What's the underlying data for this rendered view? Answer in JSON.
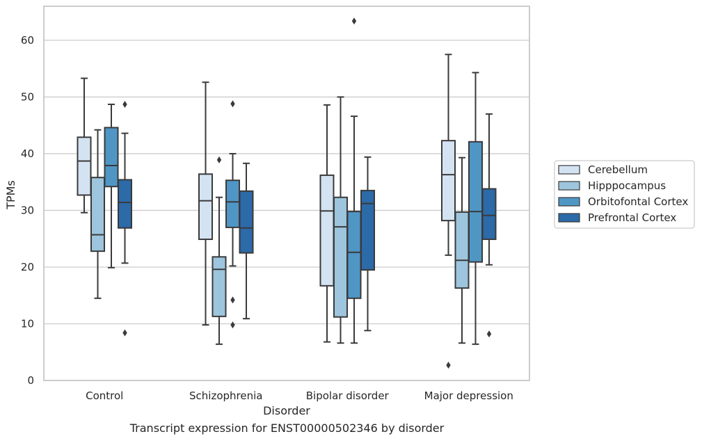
{
  "caption": "Transcript expression for ENST00000502346 by disorder",
  "chart_data": {
    "type": "boxplot",
    "xlabel": "Disorder",
    "ylabel": "TPMs",
    "ylim": [
      0,
      66
    ],
    "yticks": [
      0,
      10,
      20,
      30,
      40,
      50,
      60
    ],
    "grid": "horizontal",
    "legend_position": "right",
    "categories": [
      "Control",
      "Schizophrenia",
      "Bipolar disorder",
      "Major depression"
    ],
    "series": [
      {
        "name": "Cerebellum",
        "color": "#d4e3f2",
        "boxes": [
          {
            "whisker_low": 29.6,
            "q1": 32.7,
            "median": 38.7,
            "q3": 42.9,
            "whisker_high": 53.3,
            "outliers": []
          },
          {
            "whisker_low": 9.8,
            "q1": 24.9,
            "median": 31.7,
            "q3": 36.4,
            "whisker_high": 52.6,
            "outliers": []
          },
          {
            "whisker_low": 6.8,
            "q1": 16.7,
            "median": 29.9,
            "q3": 36.2,
            "whisker_high": 48.6,
            "outliers": []
          },
          {
            "whisker_low": 22.1,
            "q1": 28.2,
            "median": 36.3,
            "q3": 42.3,
            "whisker_high": 57.5,
            "outliers": [
              2.7
            ]
          }
        ]
      },
      {
        "name": "Hipppocampus",
        "color": "#9dc5dd",
        "boxes": [
          {
            "whisker_low": 14.5,
            "q1": 22.8,
            "median": 25.7,
            "q3": 35.8,
            "whisker_high": 44.2,
            "outliers": []
          },
          {
            "whisker_low": 6.4,
            "q1": 11.3,
            "median": 19.6,
            "q3": 21.8,
            "whisker_high": 32.3,
            "outliers": [
              38.9
            ]
          },
          {
            "whisker_low": 6.6,
            "q1": 11.2,
            "median": 27.1,
            "q3": 32.3,
            "whisker_high": 50.0,
            "outliers": []
          },
          {
            "whisker_low": 6.6,
            "q1": 16.3,
            "median": 21.2,
            "q3": 29.7,
            "whisker_high": 39.3,
            "outliers": []
          }
        ]
      },
      {
        "name": "Orbitofontal Cortex",
        "color": "#5096c5",
        "boxes": [
          {
            "whisker_low": 19.9,
            "q1": 34.2,
            "median": 37.9,
            "q3": 44.6,
            "whisker_high": 48.7,
            "outliers": []
          },
          {
            "whisker_low": 20.2,
            "q1": 27.0,
            "median": 31.5,
            "q3": 35.3,
            "whisker_high": 40.0,
            "outliers": [
              48.8,
              14.2,
              9.8
            ]
          },
          {
            "whisker_low": 6.6,
            "q1": 14.5,
            "median": 22.6,
            "q3": 29.8,
            "whisker_high": 46.6,
            "outliers": [
              63.4
            ]
          },
          {
            "whisker_low": 6.4,
            "q1": 20.9,
            "median": 29.8,
            "q3": 42.1,
            "whisker_high": 54.3,
            "outliers": []
          }
        ]
      },
      {
        "name": "Prefrontal Cortex",
        "color": "#2c6aa8",
        "boxes": [
          {
            "whisker_low": 20.7,
            "q1": 26.9,
            "median": 31.4,
            "q3": 35.4,
            "whisker_high": 43.6,
            "outliers": [
              48.7,
              8.4
            ]
          },
          {
            "whisker_low": 10.9,
            "q1": 22.5,
            "median": 26.9,
            "q3": 33.4,
            "whisker_high": 38.3,
            "outliers": []
          },
          {
            "whisker_low": 8.8,
            "q1": 19.5,
            "median": 31.2,
            "q3": 33.5,
            "whisker_high": 39.4,
            "outliers": []
          },
          {
            "whisker_low": 20.4,
            "q1": 24.9,
            "median": 29.1,
            "q3": 33.8,
            "whisker_high": 47.0,
            "outliers": [
              8.2
            ]
          }
        ]
      }
    ]
  }
}
